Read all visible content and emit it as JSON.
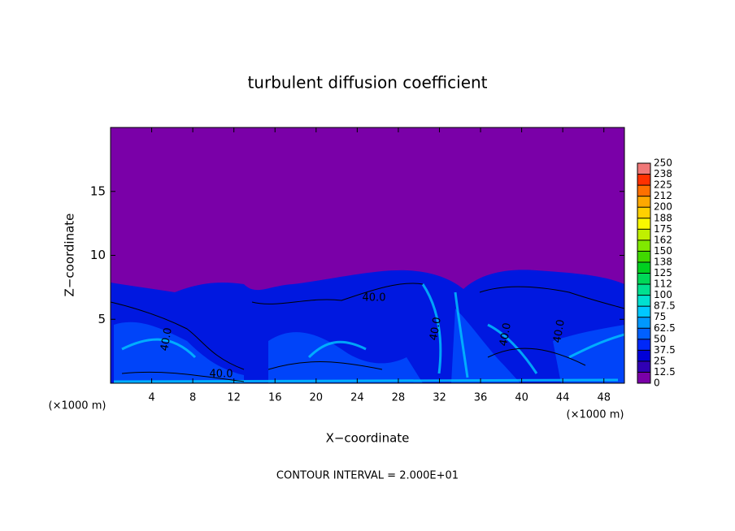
{
  "chart_data": {
    "type": "contour",
    "title": "turbulent diffusion coefficient",
    "xlabel": "X−coordinate",
    "ylabel": "Z−coordinate",
    "x_unit": "(×1000 m)",
    "footer": "CONTOUR INTERVAL = 2.000E+01",
    "xlim": [
      0,
      50
    ],
    "xticks": [
      4,
      8,
      12,
      16,
      20,
      24,
      28,
      32,
      36,
      40,
      44,
      48
    ],
    "ylim": [
      0,
      20
    ],
    "yticks": [
      5,
      10,
      15
    ],
    "contour_labels": [
      "40.0",
      "40.0",
      "40.0",
      "40.0",
      "40.0",
      "40.0"
    ],
    "colorbar": {
      "levels": [
        0,
        12.5,
        25,
        37.5,
        50,
        62.5,
        75,
        87.5,
        100,
        {
          "value": 112.5,
          "label": "112"
        },
        125,
        {
          "value": 137.5,
          "label": "138"
        },
        150,
        {
          "value": 162.5,
          "label": "162"
        },
        175,
        {
          "value": 187.5,
          "label": "188"
        },
        200,
        {
          "value": 212.5,
          "label": "212"
        },
        225,
        {
          "value": 237.5,
          "label": "238"
        },
        250
      ],
      "colors": [
        "#7a00a8",
        "#3000b4",
        "#0000d8",
        "#0028f8",
        "#0060ff",
        "#0098ff",
        "#00c8ff",
        "#00e0d0",
        "#00e090",
        "#00d858",
        "#00d020",
        "#40d800",
        "#80e800",
        "#c0f000",
        "#f8f800",
        "#ffd000",
        "#ffa800",
        "#ff7000",
        "#ff3000",
        "#f07878"
      ]
    }
  }
}
